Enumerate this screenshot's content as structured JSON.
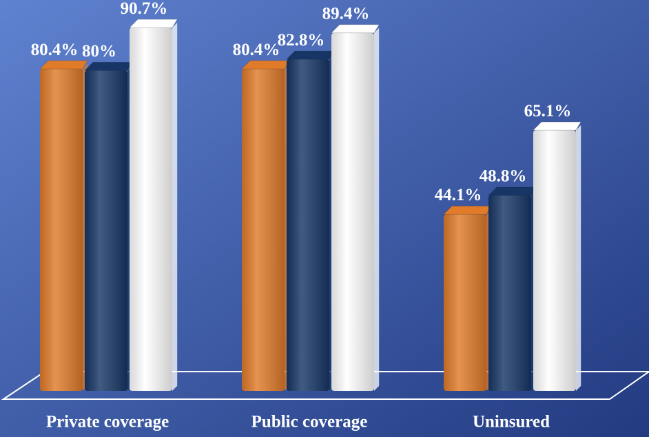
{
  "chart_data": {
    "type": "bar",
    "categories": [
      "Private coverage",
      "Public coverage",
      "Uninsured"
    ],
    "series": [
      {
        "color": "#e07b2a",
        "values": [
          80.4,
          80.4,
          44.1
        ],
        "value_labels": [
          "80.4%",
          "80.4%",
          "44.1%"
        ]
      },
      {
        "color": "#173666",
        "values": [
          80,
          82.8,
          48.8
        ],
        "value_labels": [
          "80%",
          "82.8%",
          "48.8%"
        ]
      },
      {
        "color": "#ffffff",
        "values": [
          90.7,
          89.4,
          65.1
        ],
        "value_labels": [
          "90.7%",
          "89.4%",
          "65.1%"
        ]
      }
    ]
  }
}
